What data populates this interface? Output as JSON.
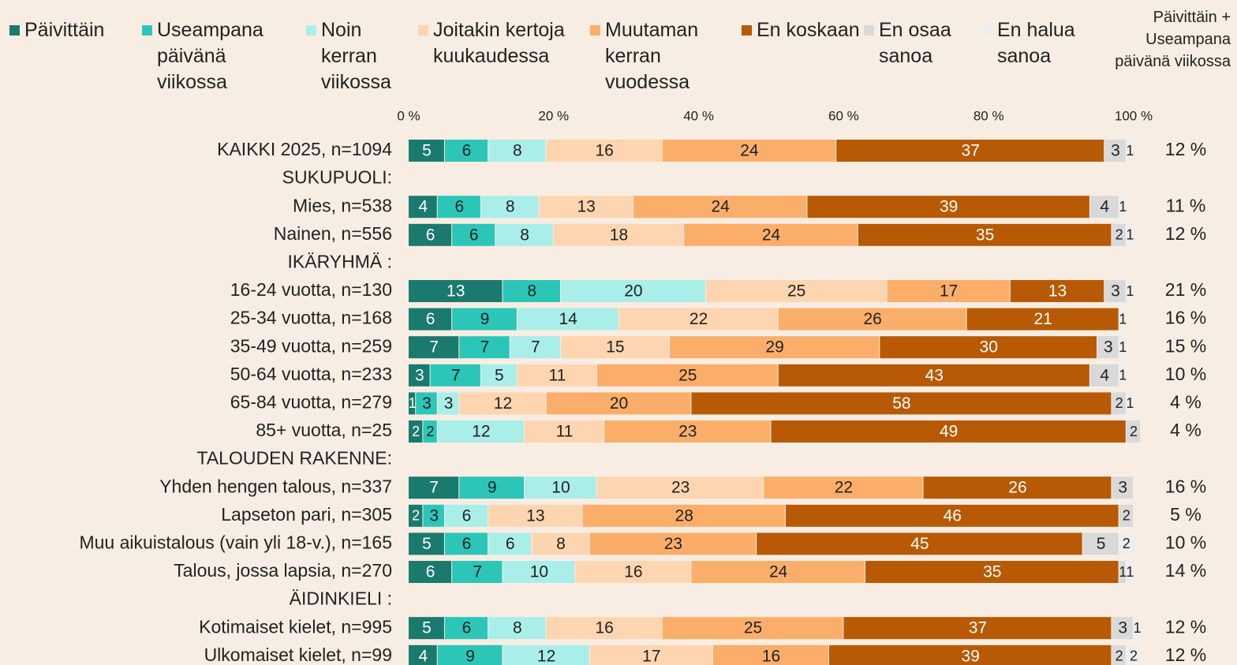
{
  "chart_data": {
    "type": "stacked-bar-horizontal",
    "categories": [
      "KAIKKI 2025, n=1094",
      "SUKUPUOLI:",
      "Mies, n=538",
      "Nainen, n=556",
      "IKÄRYHMÄ :",
      "16-24 vuotta, n=130",
      "25-34 vuotta, n=168",
      "35-49 vuotta, n=259",
      "50-64 vuotta, n=233",
      "65-84 vuotta, n=279",
      "85+ vuotta, n=25",
      "TALOUDEN RAKENNE:",
      "Yhden hengen talous, n=337",
      "Lapseton pari, n=305",
      "Muu aikuistalous (vain yli 18-v.), n=165",
      "Talous, jossa lapsia, n=270",
      "ÄIDINKIELI :",
      "Kotimaiset kielet, n=995",
      "Ulkomaiset kielet, n=99"
    ],
    "series": [
      {
        "name": "Päivittäin",
        "color": "#1a7a6e",
        "values": [
          5,
          null,
          4,
          6,
          null,
          13,
          6,
          7,
          3,
          1,
          2,
          null,
          7,
          2,
          5,
          6,
          null,
          5,
          4
        ]
      },
      {
        "name": "Useampana päivänä viikossa",
        "color": "#2cc6b8",
        "values": [
          6,
          null,
          6,
          6,
          null,
          8,
          9,
          7,
          7,
          3,
          2,
          null,
          9,
          3,
          6,
          7,
          null,
          6,
          9
        ]
      },
      {
        "name": "Noin kerran viikossa",
        "color": "#aaeee9",
        "values": [
          8,
          null,
          8,
          8,
          null,
          20,
          14,
          7,
          5,
          3,
          12,
          null,
          10,
          6,
          6,
          10,
          null,
          8,
          12
        ]
      },
      {
        "name": "Joitakin kertoja kuukaudessa",
        "color": "#fdd5b0",
        "values": [
          16,
          null,
          13,
          18,
          null,
          25,
          22,
          15,
          11,
          12,
          11,
          null,
          23,
          13,
          8,
          16,
          null,
          16,
          17
        ]
      },
      {
        "name": "Muutaman kerran vuodessa",
        "color": "#fbae6a",
        "values": [
          24,
          null,
          24,
          24,
          null,
          17,
          26,
          29,
          25,
          20,
          23,
          null,
          22,
          28,
          23,
          24,
          null,
          25,
          16
        ]
      },
      {
        "name": "En koskaan",
        "color": "#b85a05",
        "values": [
          37,
          null,
          39,
          35,
          null,
          13,
          21,
          30,
          43,
          58,
          49,
          null,
          26,
          46,
          45,
          35,
          null,
          37,
          39
        ]
      },
      {
        "name": "En osaa sanoa",
        "color": "#d9d9d9",
        "values": [
          3,
          null,
          4,
          2,
          null,
          3,
          null,
          3,
          4,
          2,
          2,
          null,
          3,
          2,
          5,
          1,
          null,
          3,
          2
        ]
      },
      {
        "name": "En halua sanoa",
        "color": "#eeeeee",
        "values": [
          1,
          null,
          1,
          1,
          null,
          1,
          1,
          1,
          1,
          1,
          null,
          null,
          null,
          null,
          2,
          1,
          null,
          1,
          2
        ]
      }
    ],
    "xlim": [
      0,
      100
    ],
    "xticks": [
      {
        "value": 0,
        "label": "0 %"
      },
      {
        "value": 20,
        "label": "20 %"
      },
      {
        "value": 40,
        "label": "40 %"
      },
      {
        "value": 60,
        "label": "60 %"
      },
      {
        "value": 80,
        "label": "80 %"
      },
      {
        "value": 100,
        "label": "100 %"
      }
    ],
    "sum_title": "Päivittäin + Useampana päivänä viikossa",
    "sum_values": [
      12,
      null,
      11,
      12,
      null,
      21,
      16,
      15,
      10,
      4,
      4,
      null,
      16,
      5,
      10,
      14,
      null,
      12,
      12
    ],
    "sum_value_labels": [
      "12 %",
      null,
      "11 %",
      "12 %",
      null,
      "21 %",
      "16 %",
      "15 %",
      "10 %",
      "4 %",
      "4 %",
      null,
      "16 %",
      "5 %",
      "10 %",
      "14 %",
      null,
      "12 %",
      "12 %"
    ]
  }
}
